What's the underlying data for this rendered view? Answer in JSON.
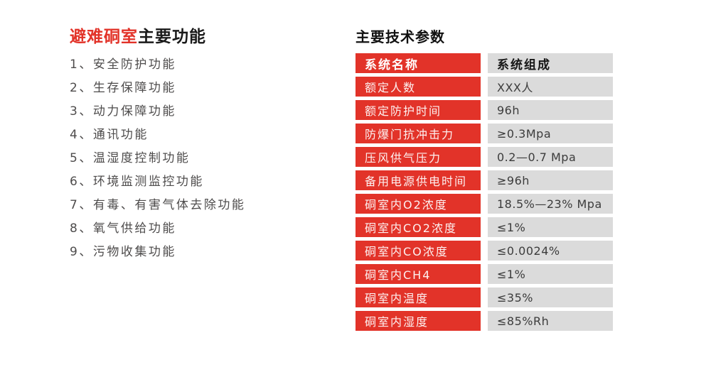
{
  "colors": {
    "accent_red": "#e23329",
    "cell_gray": "#dbdbdb"
  },
  "left_panel": {
    "title": {
      "highlight": "避难硐室",
      "rest": "主要功能"
    },
    "items": [
      {
        "label": "1、安全防护功能"
      },
      {
        "label": "2、生存保障功能"
      },
      {
        "label": "3、动力保障功能"
      },
      {
        "label": "4、通讯功能"
      },
      {
        "label": "5、温湿度控制功能"
      },
      {
        "label": "6、环境监测监控功能"
      },
      {
        "label": "7、有毒、有害气体去除功能"
      },
      {
        "label": "8、氧气供给功能"
      },
      {
        "label": "9、污物收集功能"
      }
    ]
  },
  "right_panel": {
    "title": "主要技术参数",
    "table": {
      "header": {
        "name": "系统名称",
        "value": "系统组成"
      },
      "rows": [
        {
          "name": "额定人数",
          "value": "XXX人"
        },
        {
          "name": "额定防护时间",
          "value": "96h"
        },
        {
          "name": "防爆门抗冲击力",
          "value": "≥0.3Mpa"
        },
        {
          "name": "压风供气压力",
          "value": "0.2—0.7 Mpa"
        },
        {
          "name": "备用电源供电时间",
          "value": "≥96h"
        },
        {
          "name": "硐室内O2浓度",
          "value": "18.5%—23% Mpa"
        },
        {
          "name": "硐室内CO2浓度",
          "value": "≤1%"
        },
        {
          "name": "硐室内CO浓度",
          "value": "≤0.0024%"
        },
        {
          "name": "硐室内CH4",
          "value": "≤1%"
        },
        {
          "name": "硐室内温度",
          "value": "≤35%"
        },
        {
          "name": "硐室内湿度",
          "value": "≤85%Rh"
        }
      ]
    }
  }
}
